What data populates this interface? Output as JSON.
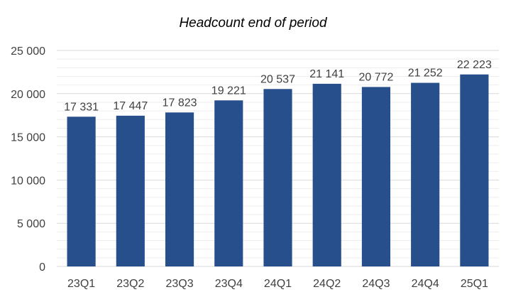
{
  "chart_data": {
    "type": "bar",
    "title": "Headcount end of period",
    "categories": [
      "23Q1",
      "23Q2",
      "23Q3",
      "23Q4",
      "24Q1",
      "24Q2",
      "24Q3",
      "24Q4",
      "25Q1"
    ],
    "values": [
      17331,
      17447,
      17823,
      19221,
      20537,
      21141,
      20772,
      21252,
      22223
    ],
    "data_labels": [
      "17 331",
      "17 447",
      "17 823",
      "19 221",
      "20 537",
      "21 141",
      "20 772",
      "21 252",
      "22 223"
    ],
    "y_ticks": [
      0,
      5000,
      10000,
      15000,
      20000,
      25000
    ],
    "y_tick_labels": [
      "0",
      "5 000",
      "10 000",
      "15 000",
      "20 000",
      "25 000"
    ],
    "ylim": [
      0,
      25000
    ],
    "minor_gridline_step": 1000,
    "grid": true,
    "legend": "none",
    "bar_color": "#264F8C",
    "major_gridline_color": "#D9D9D9",
    "minor_gridline_color": "#EDEDED"
  }
}
